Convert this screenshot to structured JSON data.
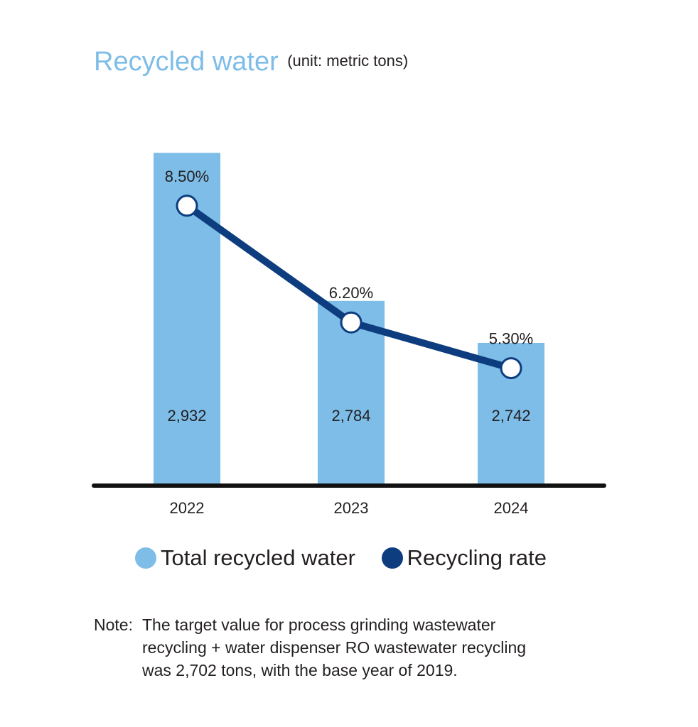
{
  "title": "Recycled water",
  "unit_label": "(unit: metric tons)",
  "colors": {
    "bar": "#7dbde8",
    "line": "#0d3d7e",
    "axis": "#111111",
    "text": "#231f20"
  },
  "chart_data": {
    "type": "bar",
    "categories": [
      "2022",
      "2023",
      "2024"
    ],
    "series": [
      {
        "name": "Total recycled water",
        "kind": "bar",
        "values": [
          2932,
          2784,
          2742
        ],
        "labels": [
          "2,932",
          "2,784",
          "2,742"
        ]
      },
      {
        "name": "Recycling rate",
        "kind": "line",
        "values": [
          8.5,
          6.2,
          5.3
        ],
        "labels": [
          "8.50%",
          "6.20%",
          "5.30%"
        ]
      }
    ],
    "title": "Recycled water",
    "xlabel": "",
    "ylabel": "",
    "bar_ylim": [
      2600,
      2940
    ],
    "line_ylim": [
      3.0,
      9.7
    ],
    "legend_position": "bottom"
  },
  "legend": [
    {
      "label": "Total recycled water",
      "color": "#7dbde8"
    },
    {
      "label": "Recycling rate",
      "color": "#0d3d7e"
    }
  ],
  "note": {
    "prefix": "Note:",
    "lines": [
      "The target value for process grinding wastewater",
      "recycling + water dispenser RO wastewater recycling",
      "was 2,702 tons, with the base year of 2019."
    ]
  }
}
